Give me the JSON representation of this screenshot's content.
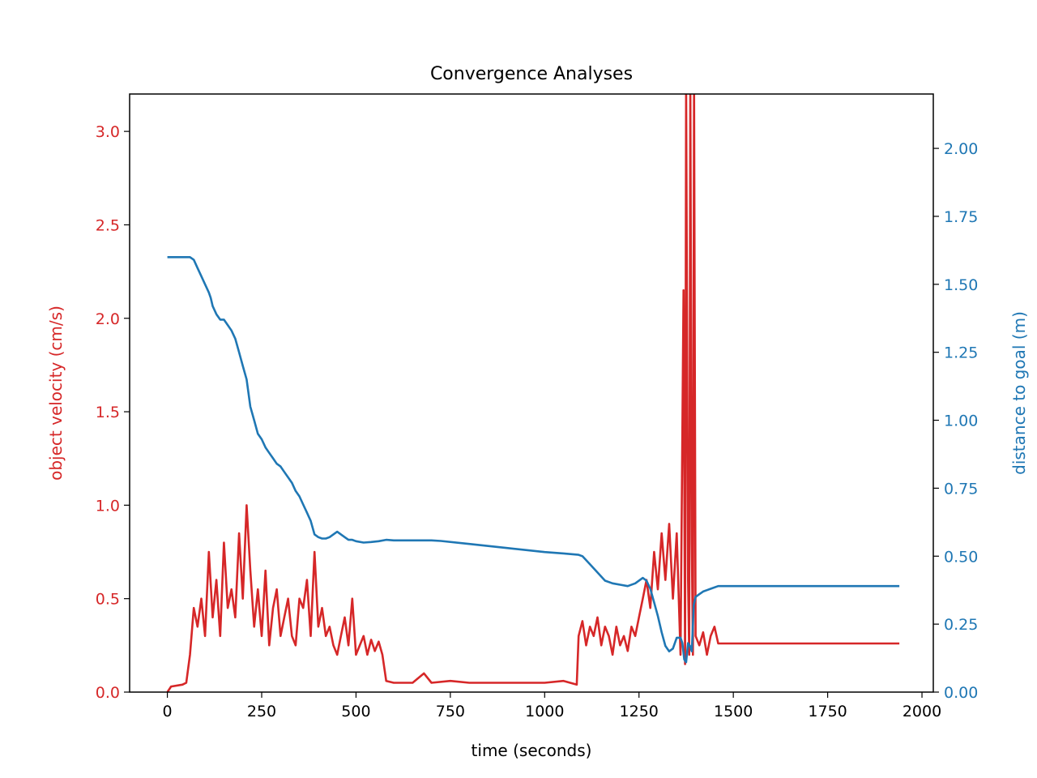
{
  "chart_data": {
    "type": "line",
    "title": "Convergence Analyses",
    "xlabel": "time (seconds)",
    "ylabel_left": "object velocity (cm/s)",
    "ylabel_right": "distance to goal (m)",
    "xlim": [
      -100,
      2030
    ],
    "ylim_left": [
      0,
      3.2
    ],
    "ylim_right": [
      0,
      2.2
    ],
    "x_ticks": [
      0,
      250,
      500,
      750,
      1000,
      1250,
      1500,
      1750,
      2000
    ],
    "x_tick_labels": [
      "0",
      "250",
      "500",
      "750",
      "1000",
      "1250",
      "1500",
      "1750",
      "2000"
    ],
    "left_ticks": [
      0,
      0.5,
      1.0,
      1.5,
      2.0,
      2.5,
      3.0
    ],
    "left_tick_labels": [
      "0.0",
      "0.5",
      "1.0",
      "1.5",
      "2.0",
      "2.5",
      "3.0"
    ],
    "right_ticks": [
      0,
      0.25,
      0.5,
      0.75,
      1.0,
      1.25,
      1.5,
      1.75,
      2.0
    ],
    "right_tick_labels": [
      "0.00",
      "0.25",
      "0.50",
      "0.75",
      "1.00",
      "1.25",
      "1.50",
      "1.75",
      "2.00"
    ],
    "colors": {
      "velocity": "#d62728",
      "distance": "#1f77b4"
    },
    "series": [
      {
        "axis": "left",
        "color": "#d62728",
        "x": [
          0,
          10,
          40,
          50,
          60,
          70,
          80,
          90,
          100,
          110,
          120,
          130,
          140,
          150,
          160,
          170,
          180,
          190,
          200,
          210,
          220,
          230,
          240,
          250,
          260,
          270,
          280,
          290,
          300,
          310,
          320,
          330,
          340,
          350,
          360,
          370,
          380,
          390,
          400,
          410,
          420,
          430,
          440,
          450,
          460,
          470,
          480,
          490,
          500,
          510,
          520,
          530,
          540,
          550,
          560,
          570,
          580,
          600,
          650,
          680,
          700,
          750,
          800,
          900,
          1000,
          1050,
          1085,
          1090,
          1100,
          1110,
          1120,
          1130,
          1140,
          1150,
          1160,
          1170,
          1180,
          1190,
          1200,
          1210,
          1220,
          1230,
          1240,
          1250,
          1260,
          1270,
          1280,
          1290,
          1300,
          1310,
          1320,
          1330,
          1340,
          1350,
          1360,
          1368,
          1372,
          1375,
          1380,
          1383,
          1386,
          1390,
          1393,
          1396,
          1400,
          1410,
          1420,
          1430,
          1440,
          1450,
          1460,
          1940
        ],
        "y": [
          0.0,
          0.03,
          0.04,
          0.05,
          0.2,
          0.45,
          0.35,
          0.5,
          0.3,
          0.75,
          0.4,
          0.6,
          0.3,
          0.8,
          0.45,
          0.55,
          0.4,
          0.85,
          0.5,
          1.0,
          0.65,
          0.35,
          0.55,
          0.3,
          0.65,
          0.25,
          0.45,
          0.55,
          0.3,
          0.4,
          0.5,
          0.3,
          0.25,
          0.5,
          0.45,
          0.6,
          0.3,
          0.75,
          0.35,
          0.45,
          0.3,
          0.35,
          0.25,
          0.2,
          0.3,
          0.4,
          0.25,
          0.5,
          0.2,
          0.25,
          0.3,
          0.2,
          0.28,
          0.22,
          0.27,
          0.2,
          0.06,
          0.05,
          0.05,
          0.1,
          0.05,
          0.06,
          0.05,
          0.05,
          0.05,
          0.06,
          0.04,
          0.3,
          0.38,
          0.25,
          0.35,
          0.3,
          0.4,
          0.25,
          0.35,
          0.3,
          0.2,
          0.35,
          0.25,
          0.3,
          0.22,
          0.35,
          0.3,
          0.4,
          0.5,
          0.6,
          0.45,
          0.75,
          0.55,
          0.85,
          0.6,
          0.9,
          0.5,
          0.85,
          0.2,
          2.15,
          0.15,
          3.25,
          0.6,
          0.2,
          3.25,
          0.8,
          0.2,
          3.25,
          0.3,
          0.25,
          0.32,
          0.2,
          0.3,
          0.35,
          0.26,
          0.26
        ]
      },
      {
        "axis": "right",
        "color": "#1f77b4",
        "x": [
          0,
          30,
          50,
          60,
          70,
          80,
          90,
          100,
          110,
          115,
          120,
          130,
          140,
          150,
          160,
          170,
          180,
          190,
          200,
          210,
          220,
          230,
          240,
          250,
          260,
          270,
          280,
          290,
          300,
          310,
          320,
          330,
          340,
          350,
          360,
          370,
          380,
          390,
          400,
          410,
          420,
          430,
          440,
          450,
          460,
          470,
          480,
          490,
          500,
          520,
          540,
          560,
          580,
          600,
          650,
          700,
          725,
          800,
          900,
          1000,
          1050,
          1090,
          1100,
          1120,
          1140,
          1160,
          1180,
          1200,
          1220,
          1240,
          1260,
          1270,
          1280,
          1290,
          1300,
          1310,
          1320,
          1330,
          1340,
          1350,
          1360,
          1365,
          1370,
          1375,
          1380,
          1385,
          1390,
          1395,
          1400,
          1410,
          1420,
          1430,
          1440,
          1460,
          1940
        ],
        "y": [
          1.6,
          1.6,
          1.6,
          1.6,
          1.59,
          1.56,
          1.53,
          1.5,
          1.47,
          1.45,
          1.42,
          1.39,
          1.37,
          1.37,
          1.35,
          1.33,
          1.3,
          1.25,
          1.2,
          1.15,
          1.05,
          1.0,
          0.95,
          0.93,
          0.9,
          0.88,
          0.86,
          0.84,
          0.83,
          0.81,
          0.79,
          0.77,
          0.74,
          0.72,
          0.69,
          0.66,
          0.63,
          0.58,
          0.57,
          0.565,
          0.565,
          0.57,
          0.58,
          0.59,
          0.58,
          0.57,
          0.56,
          0.56,
          0.555,
          0.55,
          0.552,
          0.555,
          0.56,
          0.558,
          0.558,
          0.558,
          0.556,
          0.545,
          0.53,
          0.515,
          0.51,
          0.505,
          0.5,
          0.47,
          0.44,
          0.41,
          0.4,
          0.395,
          0.39,
          0.4,
          0.42,
          0.41,
          0.38,
          0.33,
          0.28,
          0.22,
          0.17,
          0.15,
          0.16,
          0.2,
          0.2,
          0.18,
          0.12,
          0.11,
          0.18,
          0.17,
          0.15,
          0.32,
          0.35,
          0.36,
          0.37,
          0.375,
          0.38,
          0.39,
          0.39
        ]
      }
    ]
  }
}
